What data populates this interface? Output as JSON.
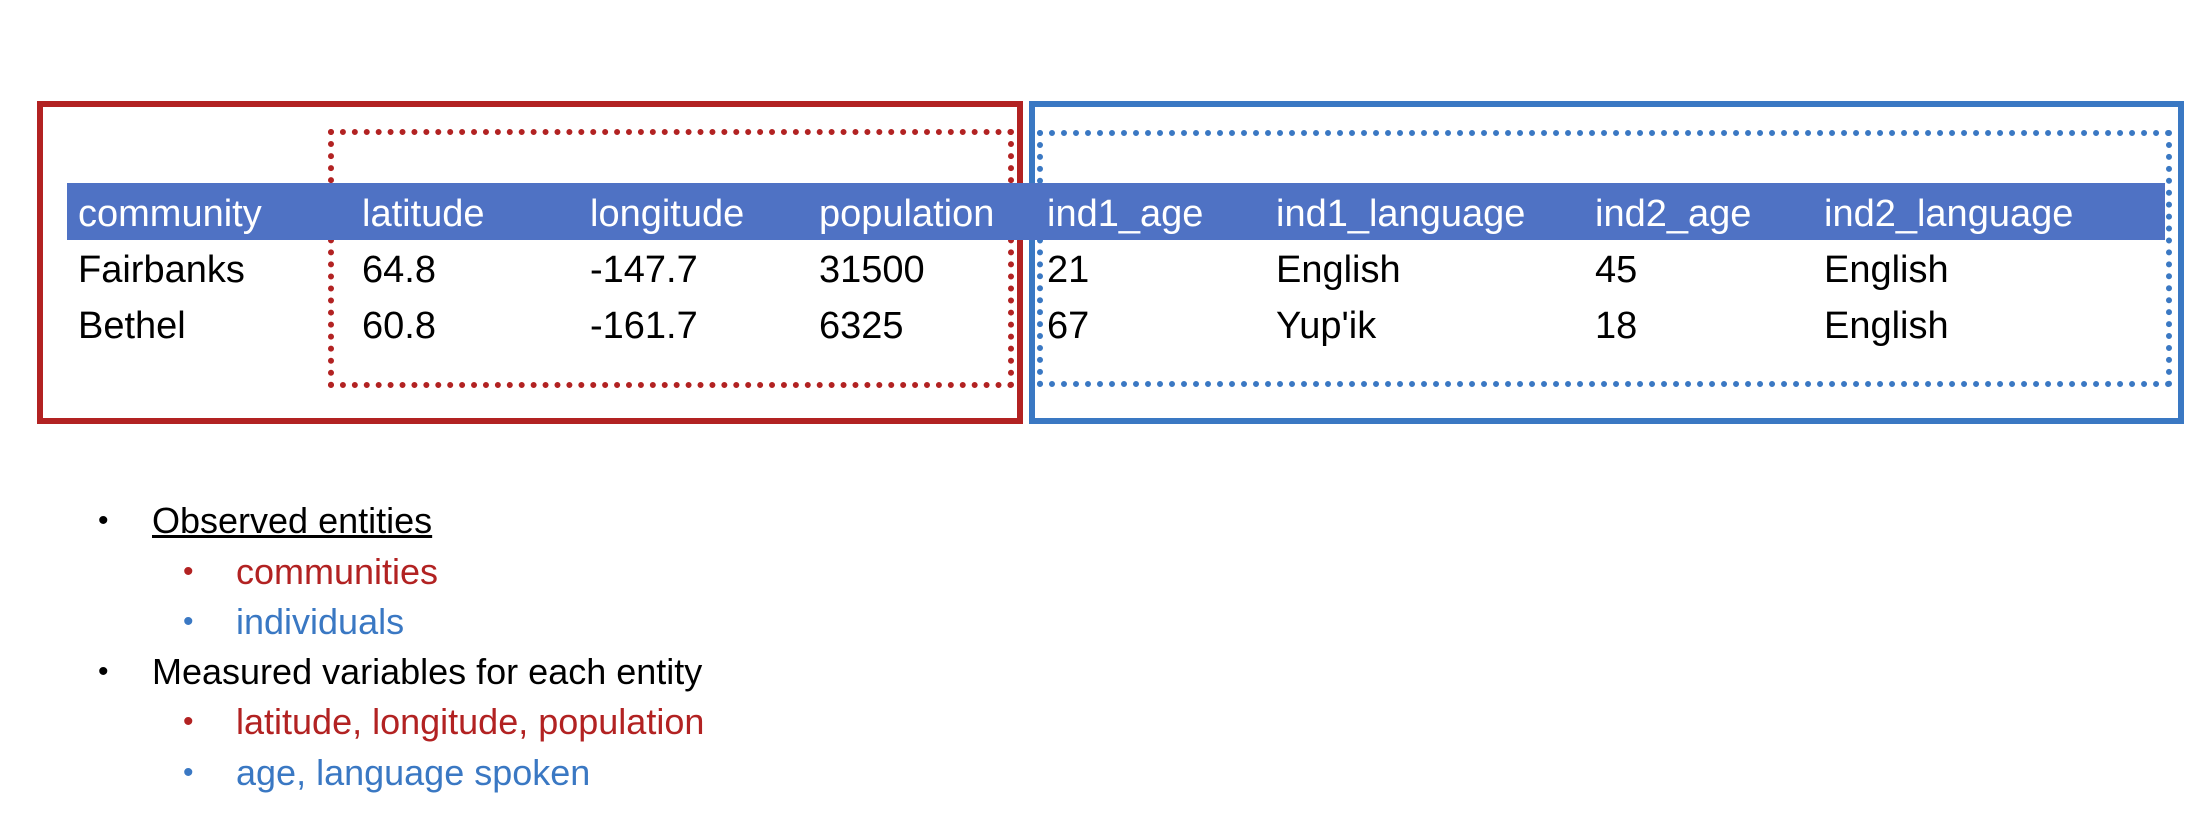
{
  "table": {
    "headers": [
      "community",
      "latitude",
      "longitude",
      "population",
      "ind1_age",
      "ind1_language",
      "ind2_age",
      "ind2_language"
    ],
    "rows": [
      [
        "Fairbanks",
        "64.8",
        "-147.7",
        "31500",
        "21",
        "English",
        "45",
        "English"
      ],
      [
        "Bethel",
        "60.8",
        "-161.7",
        "6325",
        "67",
        "Yup'ik",
        "18",
        "English"
      ]
    ]
  },
  "bullets": {
    "observed": {
      "label": "Observed entities",
      "items": [
        "communities",
        "individuals"
      ]
    },
    "measured": {
      "label": "Measured variables for each entity",
      "items": [
        "latitude, longitude, population",
        "age, language spoken"
      ]
    },
    "bullet_char": "•"
  },
  "colors": {
    "community_red": "#b22222",
    "individual_blue": "#3a78c3",
    "header_band": "#4f72c4"
  }
}
